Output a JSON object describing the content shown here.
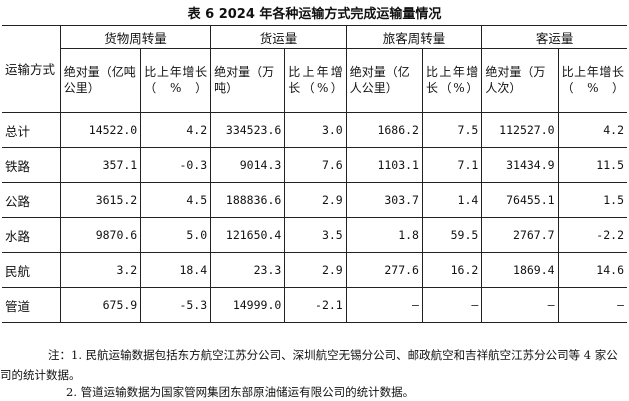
{
  "title": "表 6   2024 年各种运输方式完成运输量情况",
  "header": {
    "row_head": "运输方式",
    "groups": [
      "货物周转量",
      "货运量",
      "旅客周转量",
      "客运量"
    ],
    "subheads": [
      {
        "abs": "绝对量（亿吨公里）",
        "ratio": "比上年增长（%）"
      },
      {
        "abs": "绝对量（万吨）",
        "ratio": "比上年增长（%）"
      },
      {
        "abs": "绝对量（亿人公里）",
        "ratio": "比上年增长（%）"
      },
      {
        "abs": "绝对量（万人次）",
        "ratio": "比上年增长（%）"
      }
    ]
  },
  "rows": [
    {
      "label": "总计",
      "cells": [
        "14522.0",
        "4.2",
        "334523.6",
        "3.0",
        "1686.2",
        "7.5",
        "112527.0",
        "4.2"
      ]
    },
    {
      "label": "铁路",
      "cells": [
        "357.1",
        "-0.3",
        "9014.3",
        "7.6",
        "1103.1",
        "7.1",
        "31434.9",
        "11.5"
      ]
    },
    {
      "label": "公路",
      "cells": [
        "3615.2",
        "4.5",
        "188836.6",
        "2.9",
        "303.7",
        "1.4",
        "76455.1",
        "1.5"
      ]
    },
    {
      "label": "水路",
      "cells": [
        "9870.6",
        "5.0",
        "121650.4",
        "3.5",
        "1.8",
        "59.5",
        "2767.7",
        "-2.2"
      ]
    },
    {
      "label": "民航",
      "cells": [
        "3.2",
        "18.4",
        "23.3",
        "2.9",
        "277.6",
        "16.2",
        "1869.4",
        "14.6"
      ]
    },
    {
      "label": "管道",
      "cells": [
        "675.9",
        "-5.3",
        "14999.0",
        "-2.1",
        "—",
        "—",
        "—",
        "—"
      ]
    }
  ],
  "notes": {
    "note1": "注：1. 民航运输数据包括东方航空江苏分公司、深圳航空无锡分公司、邮政航空和吉祥航空江苏分公司等 4 家公司的统计数据。",
    "note2": "2. 管道运输数据为国家管网集团东部原油储运有限公司的统计数据。"
  }
}
